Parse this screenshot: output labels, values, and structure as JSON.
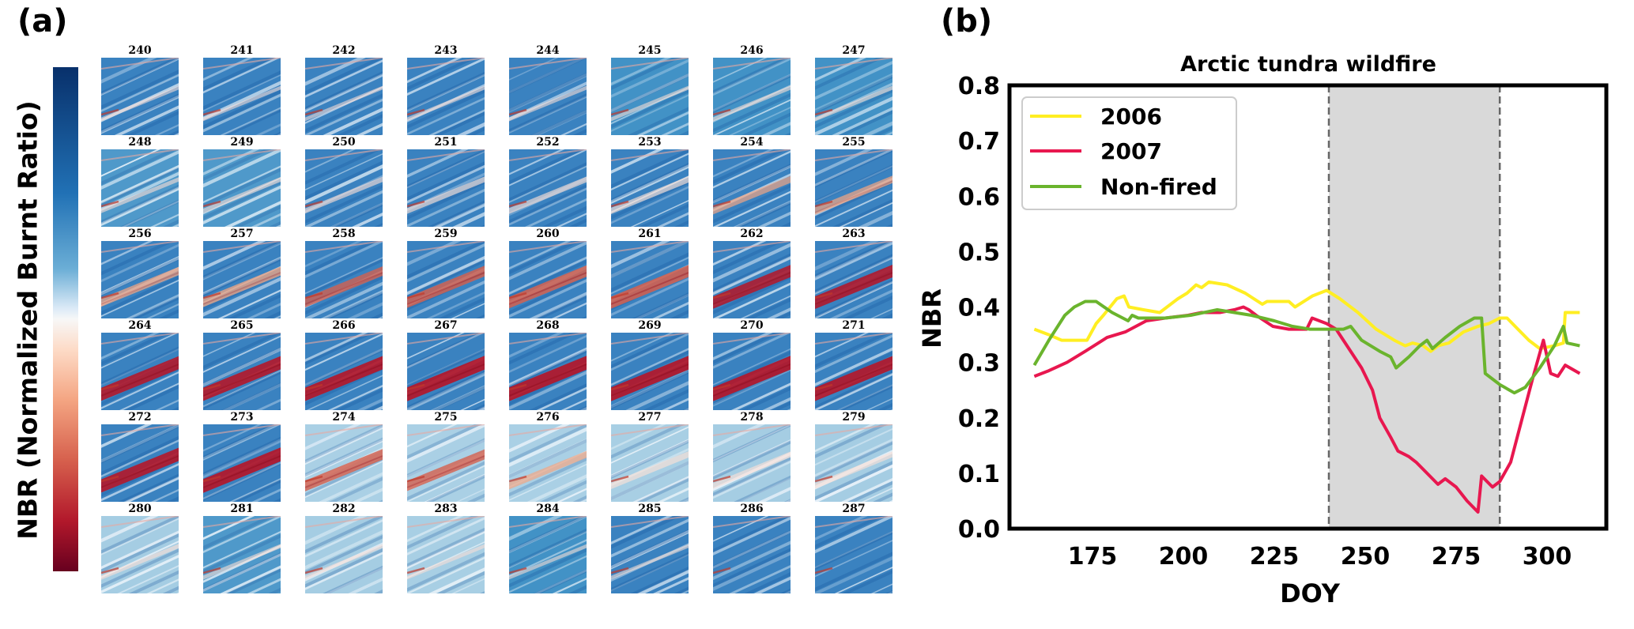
{
  "panel_a": {
    "label": "(a)",
    "colorbar_label": "NBR (Normalized Burnt Ratio)",
    "colormap": "RdBu",
    "colormap_colors": {
      "high": "#08306b",
      "mid": "#f7f7f7",
      "low": "#67001f"
    },
    "tiles": [
      {
        "doy": "240",
        "burn": 0.05,
        "bright": 0.35
      },
      {
        "doy": "241",
        "burn": 0.05,
        "bright": 0.35
      },
      {
        "doy": "242",
        "burn": 0.05,
        "bright": 0.4
      },
      {
        "doy": "243",
        "burn": 0.05,
        "bright": 0.4
      },
      {
        "doy": "244",
        "burn": 0.06,
        "bright": 0.4
      },
      {
        "doy": "245",
        "burn": 0.06,
        "bright": 0.45
      },
      {
        "doy": "246",
        "burn": 0.08,
        "bright": 0.5
      },
      {
        "doy": "247",
        "burn": 0.08,
        "bright": 0.5
      },
      {
        "doy": "248",
        "burn": 0.1,
        "bright": 0.55
      },
      {
        "doy": "249",
        "burn": 0.12,
        "bright": 0.55
      },
      {
        "doy": "250",
        "burn": 0.15,
        "bright": 0.4
      },
      {
        "doy": "251",
        "burn": 0.2,
        "bright": 0.35
      },
      {
        "doy": "252",
        "burn": 0.2,
        "bright": 0.3
      },
      {
        "doy": "253",
        "burn": 0.25,
        "bright": 0.3
      },
      {
        "doy": "254",
        "burn": 0.3,
        "bright": 0.3
      },
      {
        "doy": "255",
        "burn": 0.35,
        "bright": 0.3
      },
      {
        "doy": "256",
        "burn": 0.4,
        "bright": 0.25
      },
      {
        "doy": "257",
        "burn": 0.45,
        "bright": 0.25
      },
      {
        "doy": "258",
        "burn": 0.5,
        "bright": 0.2
      },
      {
        "doy": "259",
        "burn": 0.6,
        "bright": 0.2
      },
      {
        "doy": "260",
        "burn": 0.65,
        "bright": 0.2
      },
      {
        "doy": "261",
        "burn": 0.7,
        "bright": 0.2
      },
      {
        "doy": "262",
        "burn": 0.72,
        "bright": 0.2
      },
      {
        "doy": "263",
        "burn": 0.75,
        "bright": 0.2
      },
      {
        "doy": "264",
        "burn": 0.78,
        "bright": 0.2
      },
      {
        "doy": "265",
        "burn": 0.8,
        "bright": 0.2
      },
      {
        "doy": "266",
        "burn": 0.82,
        "bright": 0.2
      },
      {
        "doy": "267",
        "burn": 0.85,
        "bright": 0.2
      },
      {
        "doy": "268",
        "burn": 0.85,
        "bright": 0.2
      },
      {
        "doy": "269",
        "burn": 0.85,
        "bright": 0.2
      },
      {
        "doy": "270",
        "burn": 0.85,
        "bright": 0.2
      },
      {
        "doy": "271",
        "burn": 0.82,
        "bright": 0.2
      },
      {
        "doy": "272",
        "burn": 0.8,
        "bright": 0.25
      },
      {
        "doy": "273",
        "burn": 0.85,
        "bright": 0.25
      },
      {
        "doy": "274",
        "burn": 0.6,
        "bright": 0.7
      },
      {
        "doy": "275",
        "burn": 0.55,
        "bright": 0.7
      },
      {
        "doy": "276",
        "burn": 0.3,
        "bright": 0.7
      },
      {
        "doy": "277",
        "burn": 0.25,
        "bright": 0.65
      },
      {
        "doy": "278",
        "burn": 0.2,
        "bright": 0.6
      },
      {
        "doy": "279",
        "burn": 0.2,
        "bright": 0.6
      },
      {
        "doy": "280",
        "burn": 0.1,
        "bright": 0.6
      },
      {
        "doy": "281",
        "burn": 0.08,
        "bright": 0.55
      },
      {
        "doy": "282",
        "burn": 0.05,
        "bright": 0.6
      },
      {
        "doy": "283",
        "burn": 0.05,
        "bright": 0.65
      },
      {
        "doy": "284",
        "burn": 0.04,
        "bright": 0.5
      },
      {
        "doy": "285",
        "burn": 0.03,
        "bright": 0.35
      },
      {
        "doy": "286",
        "burn": 0.02,
        "bright": 0.3
      },
      {
        "doy": "287",
        "burn": 0.02,
        "bright": 0.3
      }
    ]
  },
  "panel_b": {
    "label": "(b)"
  },
  "chart_data": {
    "type": "line",
    "title": "Arctic tundra wildfire",
    "xlabel": "DOY",
    "ylabel": "NBR",
    "xlim": [
      153,
      321
    ],
    "ylim": [
      0.0,
      0.8
    ],
    "xticks": [
      175,
      200,
      225,
      250,
      275,
      300
    ],
    "yticks": [
      0.0,
      0.1,
      0.2,
      0.3,
      0.4,
      0.5,
      0.6,
      0.7,
      0.8
    ],
    "ytick_labels": [
      "0.0",
      "0.1",
      "0.2",
      "0.3",
      "0.4",
      "0.5",
      "0.6",
      "0.7",
      "0.8"
    ],
    "grid": false,
    "legend_position": "top-left",
    "shaded_span": {
      "x0": 240,
      "x1": 287,
      "color": "#d9d9d9",
      "border": "dashed"
    },
    "series": [
      {
        "name": "2006",
        "color": "#ffee22",
        "points": [
          [
            159,
            0.36
          ],
          [
            163,
            0.35
          ],
          [
            166.5,
            0.34
          ],
          [
            173.5,
            0.34
          ],
          [
            176,
            0.37
          ],
          [
            178,
            0.385
          ],
          [
            181.7,
            0.415
          ],
          [
            183.7,
            0.42
          ],
          [
            185,
            0.4
          ],
          [
            189,
            0.395
          ],
          [
            193.5,
            0.39
          ],
          [
            198.5,
            0.415
          ],
          [
            201,
            0.425
          ],
          [
            203.5,
            0.44
          ],
          [
            205,
            0.435
          ],
          [
            207,
            0.445
          ],
          [
            212,
            0.44
          ],
          [
            217,
            0.425
          ],
          [
            221.7,
            0.405
          ],
          [
            223,
            0.41
          ],
          [
            229,
            0.41
          ],
          [
            230.7,
            0.4
          ],
          [
            235.5,
            0.42
          ],
          [
            239.4,
            0.43
          ],
          [
            243,
            0.415
          ],
          [
            248,
            0.39
          ],
          [
            253,
            0.36
          ],
          [
            258,
            0.34
          ],
          [
            261,
            0.33
          ],
          [
            263,
            0.335
          ],
          [
            266,
            0.33
          ],
          [
            268,
            0.32
          ],
          [
            270,
            0.33
          ],
          [
            273,
            0.335
          ],
          [
            277,
            0.355
          ],
          [
            281,
            0.365
          ],
          [
            284,
            0.37
          ],
          [
            287,
            0.38
          ],
          [
            289,
            0.38
          ],
          [
            292,
            0.36
          ],
          [
            295,
            0.34
          ],
          [
            298,
            0.325
          ],
          [
            302,
            0.33
          ],
          [
            304.5,
            0.335
          ],
          [
            305,
            0.39
          ],
          [
            309,
            0.39
          ]
        ]
      },
      {
        "name": "2007",
        "color": "#e8174f",
        "points": [
          [
            159,
            0.275
          ],
          [
            163,
            0.285
          ],
          [
            168,
            0.3
          ],
          [
            173,
            0.32
          ],
          [
            179,
            0.345
          ],
          [
            184,
            0.355
          ],
          [
            189.8,
            0.375
          ],
          [
            195,
            0.38
          ],
          [
            201.3,
            0.385
          ],
          [
            205,
            0.39
          ],
          [
            210,
            0.39
          ],
          [
            214,
            0.395
          ],
          [
            216.5,
            0.4
          ],
          [
            218,
            0.395
          ],
          [
            220,
            0.385
          ],
          [
            224.6,
            0.365
          ],
          [
            229,
            0.36
          ],
          [
            233.9,
            0.36
          ],
          [
            235.4,
            0.38
          ],
          [
            239.4,
            0.37
          ],
          [
            242,
            0.36
          ],
          [
            245,
            0.33
          ],
          [
            249,
            0.29
          ],
          [
            252,
            0.25
          ],
          [
            254,
            0.2
          ],
          [
            257,
            0.165
          ],
          [
            259,
            0.14
          ],
          [
            262,
            0.13
          ],
          [
            264,
            0.12
          ],
          [
            267,
            0.1
          ],
          [
            270,
            0.08
          ],
          [
            272,
            0.09
          ],
          [
            275,
            0.075
          ],
          [
            278,
            0.05
          ],
          [
            281,
            0.03
          ],
          [
            282,
            0.095
          ],
          [
            285,
            0.075
          ],
          [
            287,
            0.085
          ],
          [
            290,
            0.12
          ],
          [
            292,
            0.17
          ],
          [
            296,
            0.27
          ],
          [
            299,
            0.34
          ],
          [
            301,
            0.28
          ],
          [
            303,
            0.275
          ],
          [
            305,
            0.295
          ],
          [
            309,
            0.28
          ]
        ]
      },
      {
        "name": "Non-fired",
        "color": "#6ab42d",
        "points": [
          [
            159,
            0.295
          ],
          [
            163,
            0.34
          ],
          [
            167.4,
            0.385
          ],
          [
            170,
            0.4
          ],
          [
            173,
            0.41
          ],
          [
            176,
            0.41
          ],
          [
            180.4,
            0.39
          ],
          [
            184.8,
            0.375
          ],
          [
            185.9,
            0.385
          ],
          [
            187.6,
            0.38
          ],
          [
            195,
            0.38
          ],
          [
            202,
            0.385
          ],
          [
            209.3,
            0.395
          ],
          [
            214,
            0.39
          ],
          [
            218.7,
            0.385
          ],
          [
            225,
            0.375
          ],
          [
            230,
            0.365
          ],
          [
            234.8,
            0.36
          ],
          [
            239.4,
            0.36
          ],
          [
            244,
            0.36
          ],
          [
            246,
            0.365
          ],
          [
            249,
            0.34
          ],
          [
            254,
            0.32
          ],
          [
            257,
            0.31
          ],
          [
            258.5,
            0.29
          ],
          [
            262,
            0.31
          ],
          [
            265,
            0.33
          ],
          [
            267,
            0.34
          ],
          [
            268.5,
            0.325
          ],
          [
            272,
            0.345
          ],
          [
            276,
            0.365
          ],
          [
            280,
            0.38
          ],
          [
            282,
            0.38
          ],
          [
            283,
            0.28
          ],
          [
            287,
            0.26
          ],
          [
            291,
            0.245
          ],
          [
            294,
            0.255
          ],
          [
            298,
            0.29
          ],
          [
            302,
            0.33
          ],
          [
            304.5,
            0.365
          ],
          [
            305.5,
            0.335
          ],
          [
            309,
            0.33
          ]
        ]
      }
    ]
  }
}
